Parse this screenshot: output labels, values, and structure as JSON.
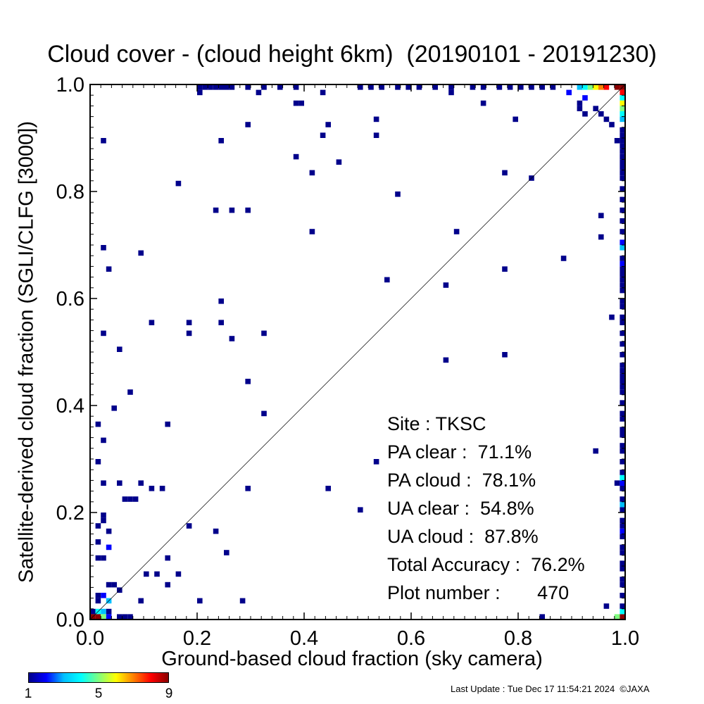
{
  "chart_data": {
    "type": "heatmap",
    "title": "Cloud cover - (cloud height 6km)  (20190101 - 20191230)",
    "xlabel": "Ground-based cloud fraction (sky camera)",
    "ylabel": "Satellite-derived cloud fraction (SGLI/CLFG [3000])",
    "xlim": [
      0.0,
      1.0
    ],
    "ylim": [
      0.0,
      1.0
    ],
    "x_ticks": [
      "0.0",
      "0.2",
      "0.4",
      "0.6",
      "0.8",
      "1.0"
    ],
    "y_ticks": [
      "0.0",
      "0.2",
      "0.4",
      "0.6",
      "0.8",
      "1.0"
    ],
    "reference_line": "y = x",
    "colorbar": {
      "min": 1,
      "max": 9,
      "tick_labels": [
        "1",
        "5",
        "9"
      ]
    },
    "cell_size": 0.01,
    "cells": [
      {
        "x": 0.2,
        "y": 0.99,
        "n": 1
      },
      {
        "x": 0.21,
        "y": 0.99,
        "n": 1
      },
      {
        "x": 0.22,
        "y": 0.99,
        "n": 1
      },
      {
        "x": 0.23,
        "y": 0.99,
        "n": 1
      },
      {
        "x": 0.24,
        "y": 0.99,
        "n": 1
      },
      {
        "x": 0.25,
        "y": 0.99,
        "n": 1
      },
      {
        "x": 0.26,
        "y": 0.99,
        "n": 1
      },
      {
        "x": 0.29,
        "y": 0.99,
        "n": 1
      },
      {
        "x": 0.32,
        "y": 0.99,
        "n": 1
      },
      {
        "x": 0.35,
        "y": 0.99,
        "n": 1
      },
      {
        "x": 0.38,
        "y": 0.99,
        "n": 1
      },
      {
        "x": 0.5,
        "y": 0.99,
        "n": 1
      },
      {
        "x": 0.52,
        "y": 0.99,
        "n": 1
      },
      {
        "x": 0.54,
        "y": 0.99,
        "n": 1
      },
      {
        "x": 0.57,
        "y": 0.99,
        "n": 1
      },
      {
        "x": 0.59,
        "y": 0.99,
        "n": 1
      },
      {
        "x": 0.61,
        "y": 0.99,
        "n": 1
      },
      {
        "x": 0.64,
        "y": 0.99,
        "n": 1
      },
      {
        "x": 0.67,
        "y": 0.99,
        "n": 1
      },
      {
        "x": 0.71,
        "y": 0.99,
        "n": 1
      },
      {
        "x": 0.73,
        "y": 0.99,
        "n": 1
      },
      {
        "x": 0.76,
        "y": 0.99,
        "n": 1
      },
      {
        "x": 0.78,
        "y": 0.99,
        "n": 1
      },
      {
        "x": 0.8,
        "y": 0.99,
        "n": 1
      },
      {
        "x": 0.82,
        "y": 0.99,
        "n": 1
      },
      {
        "x": 0.84,
        "y": 0.99,
        "n": 1
      },
      {
        "x": 0.86,
        "y": 0.99,
        "n": 1
      },
      {
        "x": 0.89,
        "y": 0.98,
        "n": 2
      },
      {
        "x": 0.91,
        "y": 0.99,
        "n": 3
      },
      {
        "x": 0.92,
        "y": 0.99,
        "n": 4
      },
      {
        "x": 0.93,
        "y": 0.99,
        "n": 5
      },
      {
        "x": 0.94,
        "y": 0.99,
        "n": 6
      },
      {
        "x": 0.95,
        "y": 0.99,
        "n": 7
      },
      {
        "x": 0.96,
        "y": 0.99,
        "n": 8
      },
      {
        "x": 0.99,
        "y": 0.99,
        "n": 9
      },
      {
        "x": 0.98,
        "y": 0.99,
        "n": 9
      },
      {
        "x": 0.99,
        "y": 0.98,
        "n": 8
      },
      {
        "x": 0.99,
        "y": 0.97,
        "n": 4
      },
      {
        "x": 0.99,
        "y": 0.96,
        "n": 6
      },
      {
        "x": 0.99,
        "y": 0.95,
        "n": 5
      },
      {
        "x": 0.99,
        "y": 0.94,
        "n": 4
      },
      {
        "x": 0.99,
        "y": 0.93,
        "n": 3
      },
      {
        "x": 0.92,
        "y": 0.97,
        "n": 2
      },
      {
        "x": 0.91,
        "y": 0.96,
        "n": 1
      },
      {
        "x": 0.2,
        "y": 0.98,
        "n": 1
      },
      {
        "x": 0.31,
        "y": 0.98,
        "n": 1
      },
      {
        "x": 0.43,
        "y": 0.98,
        "n": 1
      },
      {
        "x": 0.67,
        "y": 0.98,
        "n": 1
      },
      {
        "x": 0.38,
        "y": 0.96,
        "n": 1
      },
      {
        "x": 0.39,
        "y": 0.96,
        "n": 1
      },
      {
        "x": 0.73,
        "y": 0.96,
        "n": 1
      },
      {
        "x": 0.91,
        "y": 0.95,
        "n": 1
      },
      {
        "x": 0.92,
        "y": 0.94,
        "n": 1
      },
      {
        "x": 0.94,
        "y": 0.95,
        "n": 1
      },
      {
        "x": 0.95,
        "y": 0.94,
        "n": 1
      },
      {
        "x": 0.96,
        "y": 0.93,
        "n": 1
      },
      {
        "x": 0.53,
        "y": 0.93,
        "n": 1
      },
      {
        "x": 0.79,
        "y": 0.93,
        "n": 1
      },
      {
        "x": 0.97,
        "y": 0.92,
        "n": 1
      },
      {
        "x": 0.29,
        "y": 0.92,
        "n": 1
      },
      {
        "x": 0.44,
        "y": 0.92,
        "n": 1
      },
      {
        "x": 0.43,
        "y": 0.9,
        "n": 1
      },
      {
        "x": 0.53,
        "y": 0.9,
        "n": 1
      },
      {
        "x": 0.98,
        "y": 0.89,
        "n": 1
      },
      {
        "x": 0.02,
        "y": 0.89,
        "n": 1
      },
      {
        "x": 0.24,
        "y": 0.89,
        "n": 1
      },
      {
        "x": 0.38,
        "y": 0.86,
        "n": 1
      },
      {
        "x": 0.46,
        "y": 0.85,
        "n": 1
      },
      {
        "x": 0.41,
        "y": 0.83,
        "n": 1
      },
      {
        "x": 0.77,
        "y": 0.83,
        "n": 1
      },
      {
        "x": 0.82,
        "y": 0.82,
        "n": 1
      },
      {
        "x": 0.16,
        "y": 0.81,
        "n": 1
      },
      {
        "x": 0.57,
        "y": 0.79,
        "n": 1
      },
      {
        "x": 0.23,
        "y": 0.76,
        "n": 1
      },
      {
        "x": 0.26,
        "y": 0.76,
        "n": 1
      },
      {
        "x": 0.29,
        "y": 0.76,
        "n": 1
      },
      {
        "x": 0.95,
        "y": 0.75,
        "n": 1
      },
      {
        "x": 0.41,
        "y": 0.72,
        "n": 1
      },
      {
        "x": 0.68,
        "y": 0.72,
        "n": 1
      },
      {
        "x": 0.95,
        "y": 0.71,
        "n": 1
      },
      {
        "x": 0.02,
        "y": 0.69,
        "n": 1
      },
      {
        "x": 0.09,
        "y": 0.68,
        "n": 1
      },
      {
        "x": 0.88,
        "y": 0.67,
        "n": 1
      },
      {
        "x": 0.03,
        "y": 0.65,
        "n": 1
      },
      {
        "x": 0.77,
        "y": 0.65,
        "n": 1
      },
      {
        "x": 0.55,
        "y": 0.63,
        "n": 1
      },
      {
        "x": 0.66,
        "y": 0.62,
        "n": 1
      },
      {
        "x": 0.24,
        "y": 0.59,
        "n": 1
      },
      {
        "x": 0.97,
        "y": 0.56,
        "n": 1
      },
      {
        "x": 0.11,
        "y": 0.55,
        "n": 1
      },
      {
        "x": 0.18,
        "y": 0.55,
        "n": 1
      },
      {
        "x": 0.24,
        "y": 0.55,
        "n": 1
      },
      {
        "x": 0.02,
        "y": 0.53,
        "n": 1
      },
      {
        "x": 0.18,
        "y": 0.53,
        "n": 1
      },
      {
        "x": 0.32,
        "y": 0.53,
        "n": 1
      },
      {
        "x": 0.26,
        "y": 0.52,
        "n": 1
      },
      {
        "x": 0.05,
        "y": 0.5,
        "n": 1
      },
      {
        "x": 0.77,
        "y": 0.49,
        "n": 1
      },
      {
        "x": 0.66,
        "y": 0.48,
        "n": 1
      },
      {
        "x": 0.29,
        "y": 0.44,
        "n": 1
      },
      {
        "x": 0.07,
        "y": 0.42,
        "n": 1
      },
      {
        "x": 0.04,
        "y": 0.39,
        "n": 1
      },
      {
        "x": 0.32,
        "y": 0.38,
        "n": 1
      },
      {
        "x": 0.01,
        "y": 0.36,
        "n": 1
      },
      {
        "x": 0.14,
        "y": 0.36,
        "n": 1
      },
      {
        "x": 0.02,
        "y": 0.33,
        "n": 1
      },
      {
        "x": 0.94,
        "y": 0.31,
        "n": 1
      },
      {
        "x": 0.01,
        "y": 0.29,
        "n": 1
      },
      {
        "x": 0.53,
        "y": 0.29,
        "n": 1
      },
      {
        "x": 0.02,
        "y": 0.25,
        "n": 1
      },
      {
        "x": 0.05,
        "y": 0.25,
        "n": 1
      },
      {
        "x": 0.09,
        "y": 0.25,
        "n": 1
      },
      {
        "x": 0.11,
        "y": 0.24,
        "n": 1
      },
      {
        "x": 0.13,
        "y": 0.24,
        "n": 1
      },
      {
        "x": 0.29,
        "y": 0.24,
        "n": 1
      },
      {
        "x": 0.44,
        "y": 0.24,
        "n": 1
      },
      {
        "x": 0.98,
        "y": 0.25,
        "n": 1
      },
      {
        "x": 0.06,
        "y": 0.22,
        "n": 1
      },
      {
        "x": 0.07,
        "y": 0.22,
        "n": 1
      },
      {
        "x": 0.08,
        "y": 0.22,
        "n": 1
      },
      {
        "x": 0.5,
        "y": 0.2,
        "n": 1
      },
      {
        "x": 0.02,
        "y": 0.19,
        "n": 1
      },
      {
        "x": 0.02,
        "y": 0.18,
        "n": 1
      },
      {
        "x": 0.01,
        "y": 0.17,
        "n": 1
      },
      {
        "x": 0.18,
        "y": 0.17,
        "n": 1
      },
      {
        "x": 0.03,
        "y": 0.16,
        "n": 1
      },
      {
        "x": 0.23,
        "y": 0.16,
        "n": 1
      },
      {
        "x": 0.01,
        "y": 0.14,
        "n": 1
      },
      {
        "x": 0.03,
        "y": 0.13,
        "n": 2
      },
      {
        "x": 0.25,
        "y": 0.12,
        "n": 1
      },
      {
        "x": 0.01,
        "y": 0.11,
        "n": 1
      },
      {
        "x": 0.02,
        "y": 0.11,
        "n": 1
      },
      {
        "x": 0.14,
        "y": 0.11,
        "n": 1
      },
      {
        "x": 0.1,
        "y": 0.08,
        "n": 1
      },
      {
        "x": 0.12,
        "y": 0.08,
        "n": 1
      },
      {
        "x": 0.16,
        "y": 0.08,
        "n": 1
      },
      {
        "x": 0.03,
        "y": 0.06,
        "n": 1
      },
      {
        "x": 0.04,
        "y": 0.06,
        "n": 1
      },
      {
        "x": 0.14,
        "y": 0.06,
        "n": 1
      },
      {
        "x": 0.05,
        "y": 0.05,
        "n": 1
      },
      {
        "x": 0.01,
        "y": 0.04,
        "n": 1
      },
      {
        "x": 0.02,
        "y": 0.04,
        "n": 2
      },
      {
        "x": 0.01,
        "y": 0.03,
        "n": 1
      },
      {
        "x": 0.03,
        "y": 0.03,
        "n": 3
      },
      {
        "x": 0.09,
        "y": 0.03,
        "n": 1
      },
      {
        "x": 0.2,
        "y": 0.03,
        "n": 1
      },
      {
        "x": 0.28,
        "y": 0.03,
        "n": 1
      },
      {
        "x": 0.96,
        "y": 0.02,
        "n": 1
      },
      {
        "x": 0.0,
        "y": 0.01,
        "n": 1
      },
      {
        "x": 0.01,
        "y": 0.01,
        "n": 4
      },
      {
        "x": 0.02,
        "y": 0.01,
        "n": 3
      },
      {
        "x": 0.03,
        "y": 0.01,
        "n": 1
      },
      {
        "x": 0.0,
        "y": 0.0,
        "n": 9
      },
      {
        "x": 0.01,
        "y": 0.0,
        "n": 9
      },
      {
        "x": 0.02,
        "y": 0.0,
        "n": 5
      },
      {
        "x": 0.03,
        "y": 0.0,
        "n": 2
      },
      {
        "x": 0.05,
        "y": 0.0,
        "n": 1
      },
      {
        "x": 0.06,
        "y": 0.0,
        "n": 1
      },
      {
        "x": 0.07,
        "y": 0.0,
        "n": 1
      },
      {
        "x": 0.84,
        "y": 0.0,
        "n": 1
      },
      {
        "x": 0.98,
        "y": 0.0,
        "n": 5
      },
      {
        "x": 0.99,
        "y": 0.0,
        "n": 9
      },
      {
        "x": 0.99,
        "y": 0.01,
        "n": 4
      },
      {
        "x": 0.99,
        "y": 0.02,
        "n": 1
      },
      {
        "x": 0.99,
        "y": 0.04,
        "n": 1
      },
      {
        "x": 0.99,
        "y": 0.06,
        "n": 1
      },
      {
        "x": 0.99,
        "y": 0.07,
        "n": 1
      },
      {
        "x": 0.99,
        "y": 0.09,
        "n": 1
      },
      {
        "x": 0.99,
        "y": 0.1,
        "n": 1
      },
      {
        "x": 0.99,
        "y": 0.12,
        "n": 1
      },
      {
        "x": 0.99,
        "y": 0.13,
        "n": 1
      },
      {
        "x": 0.99,
        "y": 0.15,
        "n": 1
      },
      {
        "x": 0.99,
        "y": 0.16,
        "n": 2
      },
      {
        "x": 0.99,
        "y": 0.17,
        "n": 1
      },
      {
        "x": 0.99,
        "y": 0.18,
        "n": 1
      },
      {
        "x": 0.99,
        "y": 0.2,
        "n": 1
      },
      {
        "x": 0.99,
        "y": 0.21,
        "n": 3
      },
      {
        "x": 0.99,
        "y": 0.22,
        "n": 1
      },
      {
        "x": 0.99,
        "y": 0.24,
        "n": 1
      },
      {
        "x": 0.99,
        "y": 0.25,
        "n": 2
      },
      {
        "x": 0.99,
        "y": 0.26,
        "n": 4
      },
      {
        "x": 0.99,
        "y": 0.27,
        "n": 1
      },
      {
        "x": 0.99,
        "y": 0.29,
        "n": 1
      },
      {
        "x": 0.99,
        "y": 0.31,
        "n": 1
      },
      {
        "x": 0.99,
        "y": 0.32,
        "n": 1
      },
      {
        "x": 0.99,
        "y": 0.34,
        "n": 1
      },
      {
        "x": 0.99,
        "y": 0.35,
        "n": 1
      },
      {
        "x": 0.99,
        "y": 0.37,
        "n": 1
      },
      {
        "x": 0.99,
        "y": 0.38,
        "n": 1
      },
      {
        "x": 0.99,
        "y": 0.4,
        "n": 1
      },
      {
        "x": 0.99,
        "y": 0.42,
        "n": 1
      },
      {
        "x": 0.99,
        "y": 0.43,
        "n": 1
      },
      {
        "x": 0.99,
        "y": 0.44,
        "n": 1
      },
      {
        "x": 0.99,
        "y": 0.45,
        "n": 1
      },
      {
        "x": 0.99,
        "y": 0.46,
        "n": 1
      },
      {
        "x": 0.99,
        "y": 0.47,
        "n": 1
      },
      {
        "x": 0.99,
        "y": 0.49,
        "n": 1
      },
      {
        "x": 0.99,
        "y": 0.51,
        "n": 1
      },
      {
        "x": 0.99,
        "y": 0.53,
        "n": 1
      },
      {
        "x": 0.99,
        "y": 0.55,
        "n": 1
      },
      {
        "x": 0.99,
        "y": 0.56,
        "n": 1
      },
      {
        "x": 0.99,
        "y": 0.58,
        "n": 1
      },
      {
        "x": 0.99,
        "y": 0.59,
        "n": 1
      },
      {
        "x": 0.99,
        "y": 0.61,
        "n": 1
      },
      {
        "x": 0.99,
        "y": 0.62,
        "n": 1
      },
      {
        "x": 0.99,
        "y": 0.63,
        "n": 1
      },
      {
        "x": 0.99,
        "y": 0.64,
        "n": 1
      },
      {
        "x": 0.99,
        "y": 0.65,
        "n": 1
      },
      {
        "x": 0.99,
        "y": 0.66,
        "n": 2
      },
      {
        "x": 0.99,
        "y": 0.67,
        "n": 1
      },
      {
        "x": 0.99,
        "y": 0.69,
        "n": 3
      },
      {
        "x": 0.99,
        "y": 0.7,
        "n": 2
      },
      {
        "x": 0.99,
        "y": 0.72,
        "n": 1
      },
      {
        "x": 0.99,
        "y": 0.74,
        "n": 1
      },
      {
        "x": 0.99,
        "y": 0.76,
        "n": 1
      },
      {
        "x": 0.99,
        "y": 0.78,
        "n": 1
      },
      {
        "x": 0.99,
        "y": 0.8,
        "n": 1
      },
      {
        "x": 0.99,
        "y": 0.82,
        "n": 1
      },
      {
        "x": 0.99,
        "y": 0.83,
        "n": 1
      },
      {
        "x": 0.99,
        "y": 0.84,
        "n": 1
      },
      {
        "x": 0.99,
        "y": 0.85,
        "n": 1
      },
      {
        "x": 0.99,
        "y": 0.86,
        "n": 1
      },
      {
        "x": 0.99,
        "y": 0.87,
        "n": 1
      },
      {
        "x": 0.99,
        "y": 0.88,
        "n": 1
      },
      {
        "x": 0.99,
        "y": 0.89,
        "n": 1
      },
      {
        "x": 0.99,
        "y": 0.9,
        "n": 1
      },
      {
        "x": 0.99,
        "y": 0.91,
        "n": 1
      }
    ]
  },
  "stats": {
    "site": "Site : TKSC",
    "pa_clear": "PA clear :  71.1%",
    "pa_cloud": "PA cloud :  78.1%",
    "ua_clear": "UA clear :  54.8%",
    "ua_cloud": "UA cloud :  87.8%",
    "total_accuracy": "Total Accuracy :  76.2%",
    "plot_number": "Plot number :       470"
  },
  "footer": "Last Update : Tue Dec 17 11:54:21 2024  ©JAXA",
  "colors": {
    "colormap": [
      "#00008b",
      "#0000ff",
      "#00bfff",
      "#00ffff",
      "#7fff7f",
      "#ffff00",
      "#ff8000",
      "#ff0000",
      "#8b0000"
    ]
  }
}
